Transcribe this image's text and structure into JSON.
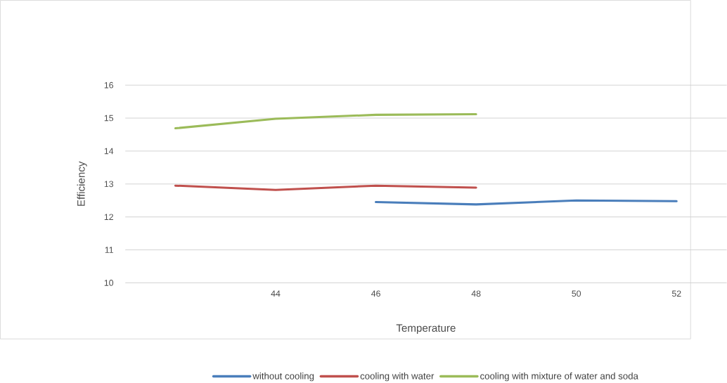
{
  "chart_data": {
    "type": "line",
    "xlabel": "Temperature",
    "ylabel": "Efficiency",
    "categories": [
      null,
      "44",
      "46",
      "48",
      "50",
      "52"
    ],
    "series": [
      {
        "name": "without cooling",
        "color": "#4a7ebb",
        "values": [
          null,
          null,
          12.45,
          12.38,
          12.5,
          12.48
        ]
      },
      {
        "name": "cooling with water",
        "color": "#c0504d",
        "values": [
          12.95,
          12.82,
          12.95,
          12.89,
          null,
          null
        ]
      },
      {
        "name": "cooling with mixture of water and soda",
        "color": "#9bbb59",
        "values": [
          14.69,
          14.98,
          15.1,
          15.12,
          null,
          null
        ]
      }
    ],
    "ylim": [
      10,
      16
    ],
    "yticks": [
      10,
      11,
      12,
      13,
      14,
      15,
      16
    ],
    "grid": "y",
    "legend": "bottom",
    "marker": "none",
    "line_style": "solid"
  }
}
